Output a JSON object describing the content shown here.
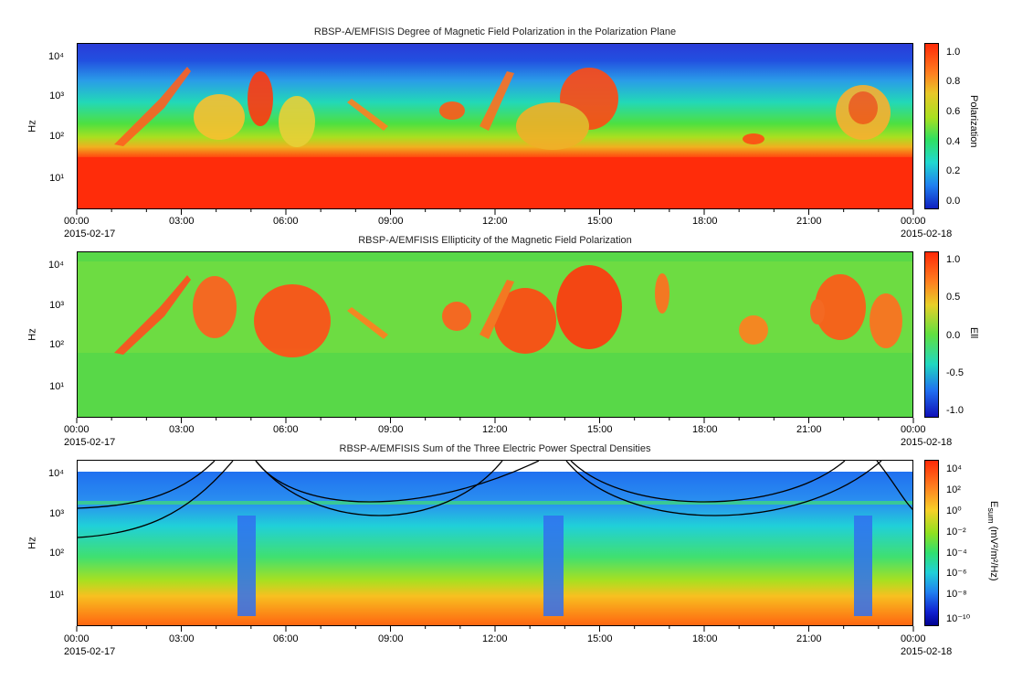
{
  "chart_data": [
    {
      "type": "heatmap",
      "title": "RBSP-A/EMFISIS  Degree of Magnetic Field Polarization in the Polarization Plane",
      "ylabel": "Hz",
      "y_scale": "log",
      "ylim": [
        2,
        13000
      ],
      "y_ticks": [
        "10¹",
        "10²",
        "10³",
        "10⁴"
      ],
      "x_ticks": [
        "00:00",
        "03:00",
        "06:00",
        "09:00",
        "12:00",
        "15:00",
        "18:00",
        "21:00",
        "00:00"
      ],
      "x_start_date": "2015-02-17",
      "x_end_date": "2015-02-18",
      "colorbar": {
        "label": "Polarization",
        "ticks": [
          "0.0",
          "0.2",
          "0.4",
          "0.6",
          "0.8",
          "1.0"
        ],
        "range": [
          -0.05,
          1.05
        ]
      }
    },
    {
      "type": "heatmap",
      "title": "RBSP-A/EMFISIS  Ellipticity of the Magnetic Field Polarization",
      "ylabel": "Hz",
      "y_scale": "log",
      "ylim": [
        2,
        13000
      ],
      "y_ticks": [
        "10¹",
        "10²",
        "10³",
        "10⁴"
      ],
      "x_ticks": [
        "00:00",
        "03:00",
        "06:00",
        "09:00",
        "12:00",
        "15:00",
        "18:00",
        "21:00",
        "00:00"
      ],
      "x_start_date": "2015-02-17",
      "x_end_date": "2015-02-18",
      "colorbar": {
        "label": "Ell",
        "ticks": [
          "1.0",
          "0.5",
          "0.0",
          "-0.5",
          "-1.0"
        ],
        "range": [
          -1.1,
          1.1
        ]
      }
    },
    {
      "type": "heatmap",
      "title": "RBSP-A/EMFISIS  Sum of the Three Electric Power Spectral Densities",
      "ylabel": "Hz",
      "y_scale": "log",
      "ylim": [
        2,
        13000
      ],
      "y_ticks": [
        "10¹",
        "10²",
        "10³",
        "10⁴"
      ],
      "x_ticks": [
        "00:00",
        "03:00",
        "06:00",
        "09:00",
        "12:00",
        "15:00",
        "18:00",
        "21:00",
        "00:00"
      ],
      "x_start_date": "2015-02-17",
      "x_end_date": "2015-02-18",
      "colorbar": {
        "label": "E_sum (mV²/m²/Hz)",
        "ticks": [
          "10⁴",
          "10²",
          "10⁰",
          "10⁻²",
          "10⁻⁴",
          "10⁻⁶",
          "10⁻⁸",
          "10⁻¹⁰"
        ],
        "scale": "log"
      }
    }
  ],
  "labels": {
    "hz": "Hz",
    "cb1": "Polarization",
    "cb2": "Ell",
    "cb3_main": "E",
    "cb3_sub": "sum",
    "cb3_units": " (mV²/m²/Hz)"
  }
}
